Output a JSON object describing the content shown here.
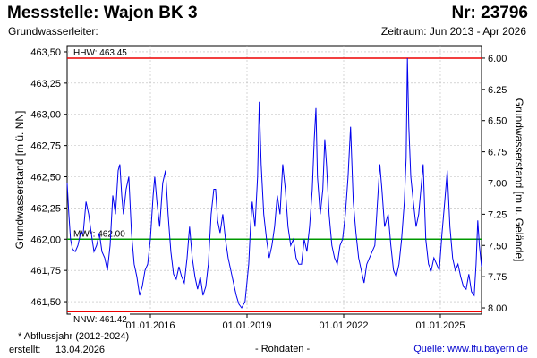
{
  "header": {
    "station": "Messstelle: Wajon BK 3",
    "number": "Nr: 23796",
    "aquifer": "Grundwasserleiter:",
    "period": "Zeitraum: Jun 2013 - Apr 2026"
  },
  "footer": {
    "footnote": "* Abflussjahr (2012-2024)",
    "created_label": "erstellt:",
    "created_date": "13.04.2026",
    "status": "- Rohdaten -",
    "source": "Quelle: www.lfu.bayern.de"
  },
  "colors": {
    "series": "#0000ee",
    "hhw": "#ee0000",
    "nnw": "#ee0000",
    "mw": "#009900",
    "grid": "#bbbbbb"
  },
  "chart_data": {
    "type": "line",
    "xlabel": "",
    "ylabel": "Grundwasserstand [m ü. NN]",
    "ylabel_right": "Grundwasserstand [m u. Gelände]",
    "xlim": [
      "2013-06-01",
      "2026-04-13"
    ],
    "ylim": [
      461.4,
      463.55
    ],
    "ylim_right": [
      8.05,
      5.9
    ],
    "y_ticks": [
      "461,50",
      "461,75",
      "462,00",
      "462,25",
      "462,50",
      "462,75",
      "463,00",
      "463,25",
      "463,50"
    ],
    "y_ticks_right": [
      "6.00",
      "6.25",
      "6.50",
      "6.75",
      "7.00",
      "7.25",
      "7.50",
      "7.75",
      "8.00"
    ],
    "x_ticks": [
      {
        "date": "2016-01-01",
        "label": "01.01.2016"
      },
      {
        "date": "2019-01-01",
        "label": "01.01.2019"
      },
      {
        "date": "2022-01-01",
        "label": "01.01.2022"
      },
      {
        "date": "2025-01-01",
        "label": "01.01.2025"
      }
    ],
    "grid": true,
    "reference_lines": [
      {
        "key": "hhw",
        "label": "HHW: 463.45",
        "value": 463.45
      },
      {
        "key": "mw",
        "label": "MW*: 462.00",
        "value": 462.0
      },
      {
        "key": "nnw",
        "label": "NNW: 461.42",
        "value": 461.42
      }
    ],
    "series": [
      {
        "points": [
          [
            "2013-06-01",
            462.45
          ],
          [
            "2013-06-20",
            462.2
          ],
          [
            "2013-07-10",
            462.0
          ],
          [
            "2013-08-01",
            461.92
          ],
          [
            "2013-09-01",
            461.9
          ],
          [
            "2013-10-01",
            461.95
          ],
          [
            "2013-11-01",
            462.05
          ],
          [
            "2013-12-01",
            462.05
          ],
          [
            "2014-01-01",
            462.3
          ],
          [
            "2014-02-01",
            462.2
          ],
          [
            "2014-03-01",
            462.05
          ],
          [
            "2014-04-01",
            461.9
          ],
          [
            "2014-05-01",
            461.95
          ],
          [
            "2014-06-01",
            462.05
          ],
          [
            "2014-07-01",
            461.9
          ],
          [
            "2014-08-01",
            461.85
          ],
          [
            "2014-09-01",
            461.75
          ],
          [
            "2014-10-01",
            461.95
          ],
          [
            "2014-11-01",
            462.35
          ],
          [
            "2014-12-01",
            462.2
          ],
          [
            "2015-01-01",
            462.55
          ],
          [
            "2015-01-20",
            462.6
          ],
          [
            "2015-02-10",
            462.35
          ],
          [
            "2015-03-01",
            462.2
          ],
          [
            "2015-04-01",
            462.4
          ],
          [
            "2015-05-01",
            462.5
          ],
          [
            "2015-06-01",
            462.05
          ],
          [
            "2015-07-01",
            461.8
          ],
          [
            "2015-08-01",
            461.7
          ],
          [
            "2015-09-01",
            461.55
          ],
          [
            "2015-10-01",
            461.62
          ],
          [
            "2015-11-01",
            461.75
          ],
          [
            "2015-12-01",
            461.8
          ],
          [
            "2016-01-01",
            462.0
          ],
          [
            "2016-02-01",
            462.35
          ],
          [
            "2016-02-20",
            462.5
          ],
          [
            "2016-03-15",
            462.3
          ],
          [
            "2016-04-15",
            462.1
          ],
          [
            "2016-05-20",
            462.45
          ],
          [
            "2016-06-20",
            462.55
          ],
          [
            "2016-07-20",
            462.2
          ],
          [
            "2016-08-20",
            461.9
          ],
          [
            "2016-09-20",
            461.72
          ],
          [
            "2016-10-20",
            461.68
          ],
          [
            "2016-11-20",
            461.78
          ],
          [
            "2016-12-20",
            461.7
          ],
          [
            "2017-01-20",
            461.65
          ],
          [
            "2017-02-20",
            461.85
          ],
          [
            "2017-03-20",
            462.1
          ],
          [
            "2017-04-20",
            461.85
          ],
          [
            "2017-05-20",
            461.7
          ],
          [
            "2017-06-20",
            461.6
          ],
          [
            "2017-07-20",
            461.7
          ],
          [
            "2017-08-20",
            461.55
          ],
          [
            "2017-09-20",
            461.62
          ],
          [
            "2017-10-20",
            461.8
          ],
          [
            "2017-11-20",
            462.2
          ],
          [
            "2017-12-20",
            462.4
          ],
          [
            "2018-01-10",
            462.4
          ],
          [
            "2018-02-01",
            462.15
          ],
          [
            "2018-03-01",
            462.05
          ],
          [
            "2018-04-01",
            462.2
          ],
          [
            "2018-05-01",
            462.0
          ],
          [
            "2018-06-01",
            461.85
          ],
          [
            "2018-07-01",
            461.75
          ],
          [
            "2018-08-01",
            461.65
          ],
          [
            "2018-09-01",
            461.55
          ],
          [
            "2018-10-01",
            461.48
          ],
          [
            "2018-11-01",
            461.45
          ],
          [
            "2018-12-10",
            461.5
          ],
          [
            "2019-01-20",
            461.8
          ],
          [
            "2019-02-10",
            462.1
          ],
          [
            "2019-03-01",
            462.3
          ],
          [
            "2019-04-01",
            462.1
          ],
          [
            "2019-05-01",
            462.5
          ],
          [
            "2019-05-20",
            463.1
          ],
          [
            "2019-06-10",
            462.6
          ],
          [
            "2019-07-10",
            462.2
          ],
          [
            "2019-08-10",
            462.0
          ],
          [
            "2019-09-10",
            461.85
          ],
          [
            "2019-10-10",
            461.95
          ],
          [
            "2019-11-10",
            462.1
          ],
          [
            "2019-12-10",
            462.35
          ],
          [
            "2020-01-10",
            462.2
          ],
          [
            "2020-02-10",
            462.6
          ],
          [
            "2020-03-10",
            462.4
          ],
          [
            "2020-04-10",
            462.1
          ],
          [
            "2020-05-10",
            461.95
          ],
          [
            "2020-06-10",
            462.0
          ],
          [
            "2020-07-10",
            461.85
          ],
          [
            "2020-08-10",
            461.8
          ],
          [
            "2020-09-10",
            461.8
          ],
          [
            "2020-10-10",
            462.0
          ],
          [
            "2020-11-10",
            461.9
          ],
          [
            "2020-12-10",
            462.1
          ],
          [
            "2021-01-10",
            462.4
          ],
          [
            "2021-02-01",
            462.8
          ],
          [
            "2021-02-20",
            463.05
          ],
          [
            "2021-03-10",
            462.5
          ],
          [
            "2021-04-10",
            462.2
          ],
          [
            "2021-05-10",
            462.4
          ],
          [
            "2021-06-01",
            462.8
          ],
          [
            "2021-06-20",
            462.6
          ],
          [
            "2021-07-20",
            462.2
          ],
          [
            "2021-08-20",
            461.95
          ],
          [
            "2021-09-20",
            461.85
          ],
          [
            "2021-10-20",
            461.8
          ],
          [
            "2021-11-20",
            461.95
          ],
          [
            "2021-12-20",
            462.0
          ],
          [
            "2022-01-20",
            462.2
          ],
          [
            "2022-02-20",
            462.5
          ],
          [
            "2022-03-20",
            462.9
          ],
          [
            "2022-04-20",
            462.3
          ],
          [
            "2022-05-20",
            462.05
          ],
          [
            "2022-06-20",
            461.85
          ],
          [
            "2022-07-20",
            461.75
          ],
          [
            "2022-08-20",
            461.65
          ],
          [
            "2022-09-20",
            461.8
          ],
          [
            "2022-10-20",
            461.85
          ],
          [
            "2022-11-20",
            461.9
          ],
          [
            "2022-12-20",
            461.95
          ],
          [
            "2023-01-20",
            462.3
          ],
          [
            "2023-02-15",
            462.6
          ],
          [
            "2023-03-10",
            462.4
          ],
          [
            "2023-04-10",
            462.1
          ],
          [
            "2023-05-20",
            462.2
          ],
          [
            "2023-06-20",
            461.95
          ],
          [
            "2023-07-20",
            461.75
          ],
          [
            "2023-08-20",
            461.7
          ],
          [
            "2023-09-20",
            461.8
          ],
          [
            "2023-10-20",
            462.0
          ],
          [
            "2023-11-20",
            462.3
          ],
          [
            "2023-12-10",
            462.65
          ],
          [
            "2023-12-25",
            463.45
          ],
          [
            "2024-01-10",
            462.9
          ],
          [
            "2024-02-01",
            462.5
          ],
          [
            "2024-03-01",
            462.3
          ],
          [
            "2024-04-01",
            462.1
          ],
          [
            "2024-05-01",
            462.2
          ],
          [
            "2024-06-01",
            462.45
          ],
          [
            "2024-06-20",
            462.6
          ],
          [
            "2024-07-20",
            462.0
          ],
          [
            "2024-08-20",
            461.8
          ],
          [
            "2024-09-20",
            461.75
          ],
          [
            "2024-10-20",
            461.85
          ],
          [
            "2024-11-20",
            461.8
          ],
          [
            "2024-12-20",
            461.75
          ],
          [
            "2025-01-20",
            462.05
          ],
          [
            "2025-02-20",
            462.3
          ],
          [
            "2025-03-20",
            462.55
          ],
          [
            "2025-04-20",
            462.1
          ],
          [
            "2025-05-20",
            461.85
          ],
          [
            "2025-06-20",
            461.75
          ],
          [
            "2025-07-20",
            461.8
          ],
          [
            "2025-08-20",
            461.7
          ],
          [
            "2025-09-20",
            461.62
          ],
          [
            "2025-10-20",
            461.6
          ],
          [
            "2025-11-20",
            461.72
          ],
          [
            "2025-12-20",
            461.58
          ],
          [
            "2026-01-20",
            461.55
          ],
          [
            "2026-02-10",
            461.8
          ],
          [
            "2026-03-01",
            462.15
          ],
          [
            "2026-03-20",
            461.95
          ],
          [
            "2026-04-13",
            461.78
          ]
        ]
      }
    ]
  }
}
